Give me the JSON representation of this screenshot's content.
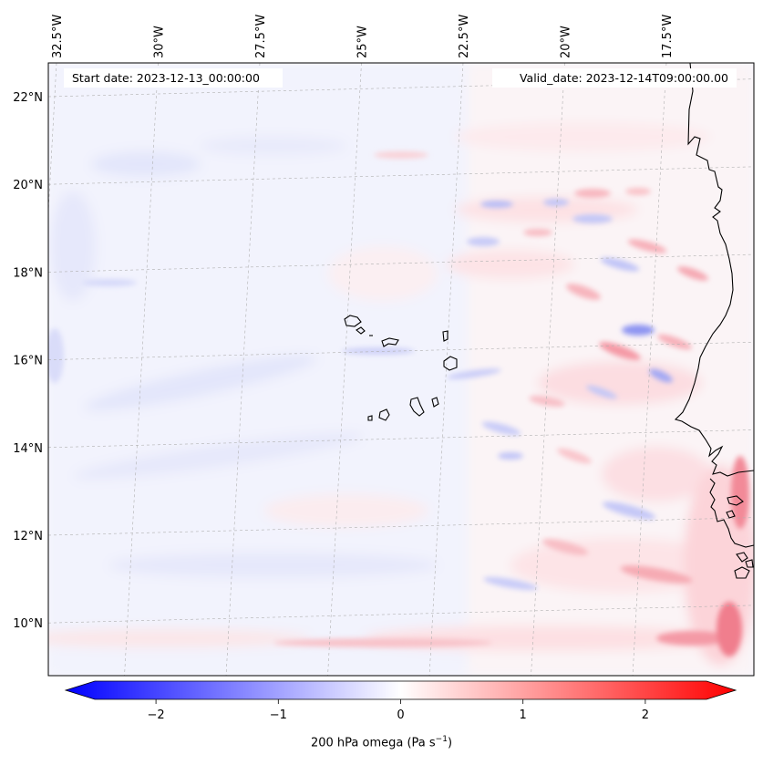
{
  "header": {
    "start_date": "Start date: 2023-12-13_00:00:00",
    "valid_date": "Valid_date: 2023-12-14T09:00:00.00"
  },
  "map": {
    "lon_ticks": [
      {
        "value": -32.5,
        "label": "32.5°W"
      },
      {
        "value": -30.0,
        "label": "30°W"
      },
      {
        "value": -27.5,
        "label": "27.5°W"
      },
      {
        "value": -25.0,
        "label": "25°W"
      },
      {
        "value": -22.5,
        "label": "22.5°W"
      },
      {
        "value": -20.0,
        "label": "20°W"
      },
      {
        "value": -17.5,
        "label": "17.5°W"
      }
    ],
    "lat_ticks": [
      {
        "value": 22,
        "label": "22°N"
      },
      {
        "value": 20,
        "label": "20°N"
      },
      {
        "value": 18,
        "label": "18°N"
      },
      {
        "value": 16,
        "label": "16°N"
      },
      {
        "value": 14,
        "label": "14°N"
      },
      {
        "value": 12,
        "label": "12°N"
      },
      {
        "value": 10,
        "label": "10°N"
      }
    ],
    "colors": {
      "negative": "#0000ff",
      "zero": "#ffffff",
      "positive": "#ff0000",
      "coastline": "#000000",
      "grid": "#b0b0b0"
    }
  },
  "colorbar": {
    "min": -2.75,
    "max": 2.75,
    "ticks": [
      {
        "value": -2,
        "label": "−2"
      },
      {
        "value": -1,
        "label": "−1"
      },
      {
        "value": 0,
        "label": "0"
      },
      {
        "value": 1,
        "label": "1"
      },
      {
        "value": 2,
        "label": "2"
      }
    ],
    "label_main": "200 hPa omega (Pa s",
    "label_exp": "−1",
    "label_close": ")"
  }
}
